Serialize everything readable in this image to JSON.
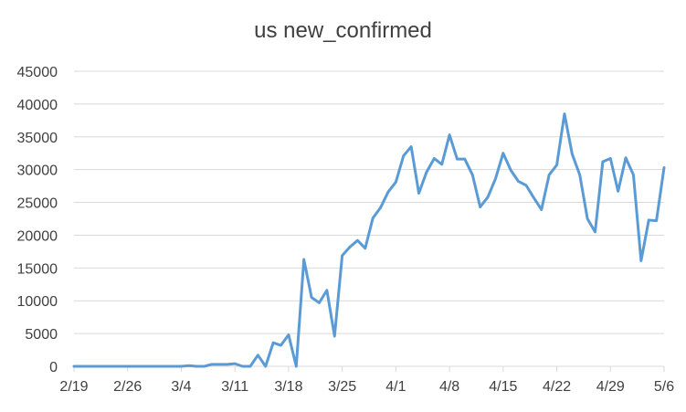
{
  "chart_data": {
    "type": "line",
    "title": "us new_confirmed",
    "xlabel": "",
    "ylabel": "",
    "ylim": [
      0,
      45000
    ],
    "yticks": [
      0,
      5000,
      10000,
      15000,
      20000,
      25000,
      30000,
      35000,
      40000,
      45000
    ],
    "grid": true,
    "legend": "none",
    "x_tick_labels": [
      "2/19",
      "2/26",
      "3/4",
      "3/11",
      "3/18",
      "3/25",
      "4/1",
      "4/8",
      "4/15",
      "4/22",
      "4/29",
      "5/6"
    ],
    "x_tick_indices": [
      0,
      7,
      14,
      21,
      28,
      35,
      42,
      49,
      56,
      63,
      70,
      77
    ],
    "series": [
      {
        "color": "#5B9BD5",
        "values": [
          0,
          0,
          0,
          0,
          0,
          0,
          0,
          0,
          0,
          0,
          0,
          0,
          0,
          0,
          0,
          100,
          0,
          0,
          300,
          300,
          300,
          400,
          0,
          0,
          1700,
          0,
          3600,
          3200,
          4800,
          0,
          16300,
          10500,
          9700,
          11600,
          4600,
          16900,
          18200,
          19200,
          18000,
          22600,
          24200,
          26600,
          28100,
          32100,
          33500,
          26400,
          29600,
          31700,
          30800,
          35300,
          31600,
          31600,
          29200,
          24300,
          25800,
          28600,
          32500,
          29900,
          28200,
          27600,
          25700,
          23900,
          29200,
          30700,
          38500,
          32400,
          29200,
          22500,
          20500,
          31200,
          31700,
          26700,
          31800,
          29200,
          16100,
          22300,
          22200,
          30300
        ]
      }
    ],
    "colors": {
      "line": "#5B9BD5",
      "grid": "#D9D9D9",
      "axis": "#D9D9D9",
      "text": "#404040"
    }
  }
}
